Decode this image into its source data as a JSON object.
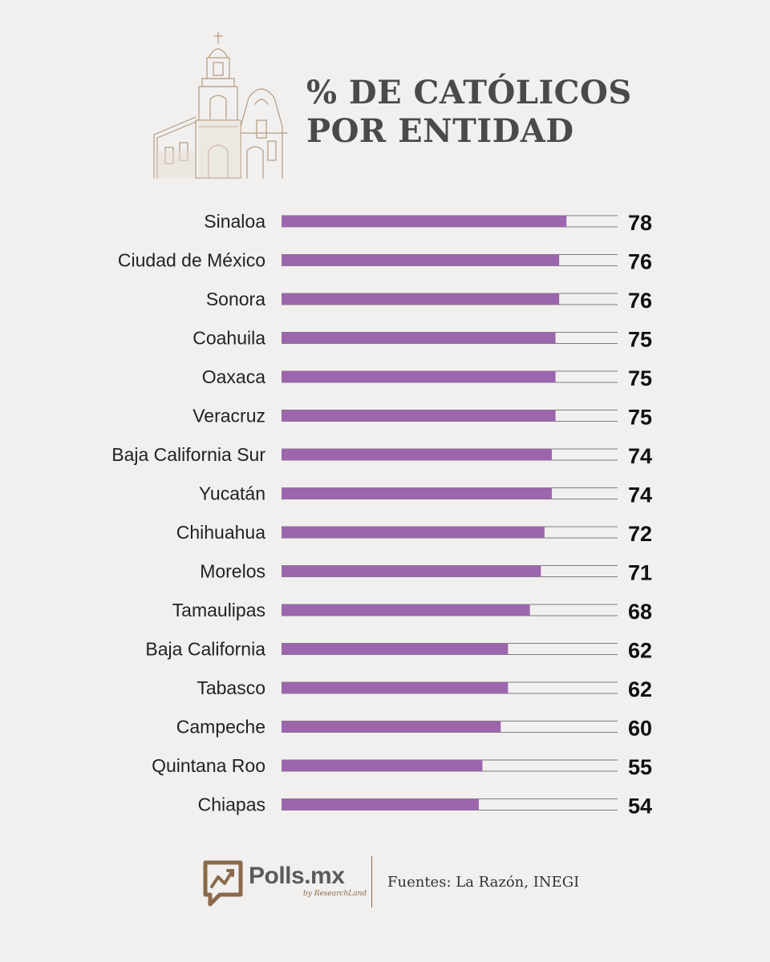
{
  "header": {
    "title_line1": "% DE CATÓLICOS",
    "title_line2": "POR ENTIDAD"
  },
  "colors": {
    "bar": "#9c66ad",
    "track_line": "#7d7d7d",
    "label_text": "#222222",
    "value_text": "#111111",
    "brand": "#8a6a4a"
  },
  "chart_data": {
    "type": "bar",
    "orientation": "horizontal",
    "title": "% DE CATÓLICOS POR ENTIDAD",
    "categories": [
      "Sinaloa",
      "Ciudad de México",
      "Sonora",
      "Coahuila",
      "Oaxaca",
      "Veracruz",
      "Baja California Sur",
      "Yucatán",
      "Chihuahua",
      "Morelos",
      "Tamaulipas",
      "Baja California",
      "Tabasco",
      "Campeche",
      "Quintana Roo",
      "Chiapas"
    ],
    "values": [
      78,
      76,
      76,
      75,
      75,
      75,
      74,
      74,
      72,
      71,
      68,
      62,
      62,
      60,
      55,
      54
    ],
    "xlim": [
      0,
      92
    ],
    "xlabel": "",
    "ylabel": "",
    "grid": false,
    "legend": "none"
  },
  "footer": {
    "brand": "Polls.mx",
    "brand_sub": "by ResearchLand",
    "sources": "Fuentes: La Razón, INEGI"
  }
}
